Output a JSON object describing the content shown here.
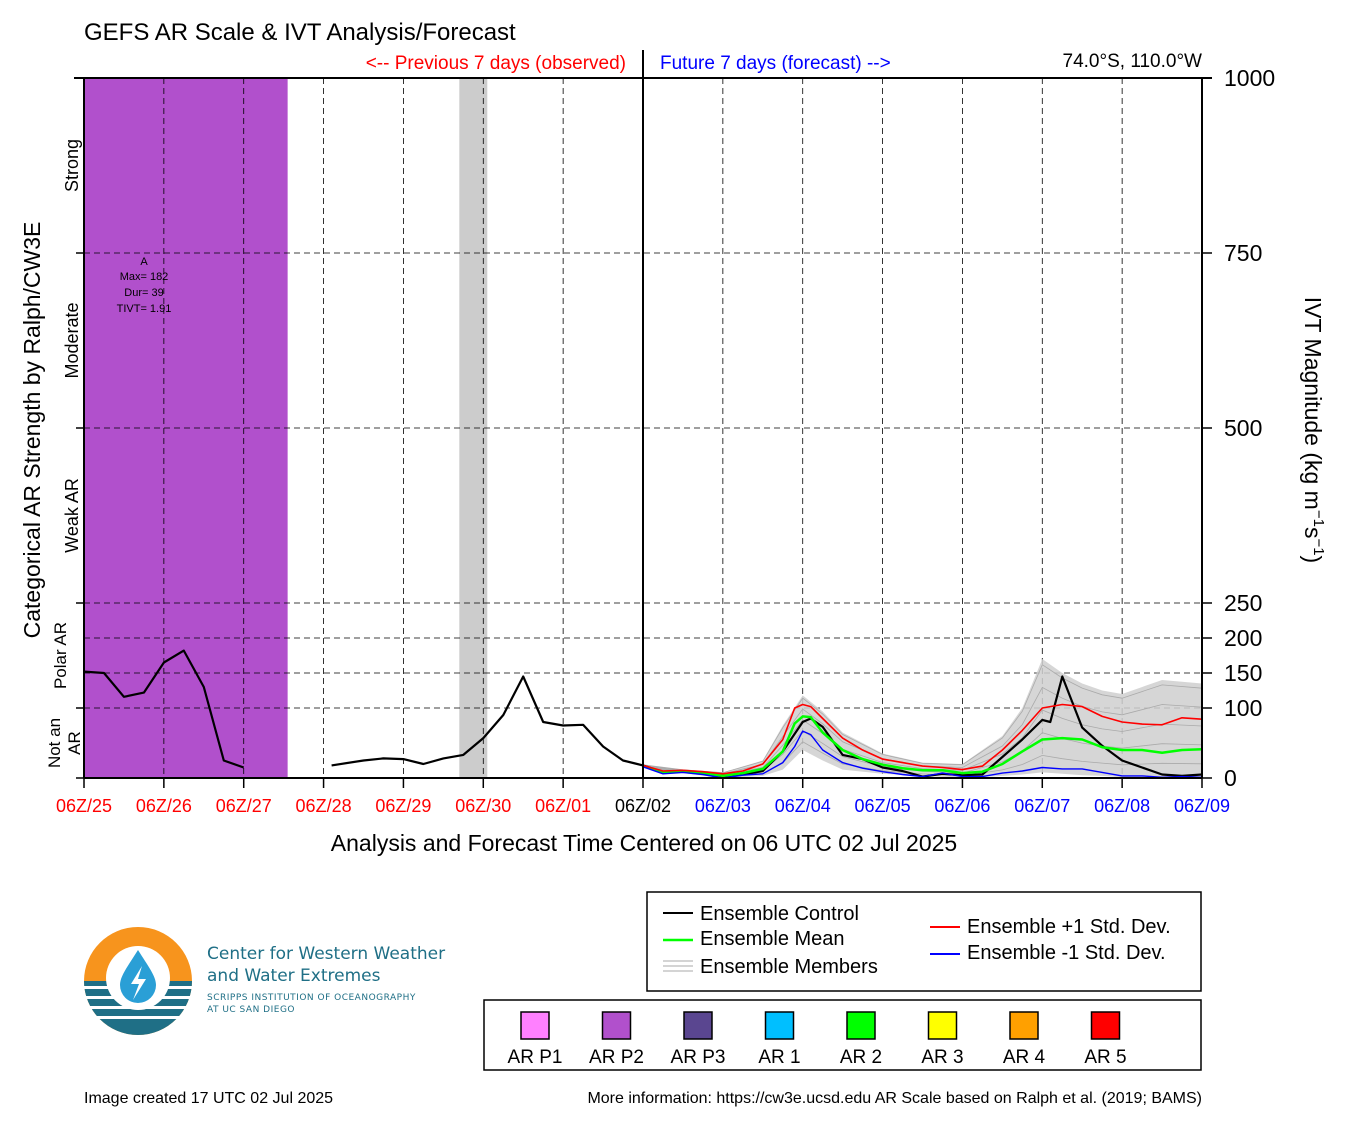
{
  "header": {
    "title": "GEFS AR Scale & IVT Analysis/Forecast",
    "previous_label": "<-- Previous 7 days (observed)",
    "future_label": "Future 7 days (forecast) -->",
    "location": "74.0°S, 110.0°W"
  },
  "colors": {
    "observed": "#ff0000",
    "forecast": "#0000ff",
    "control": "#000000",
    "mean": "#00ff00",
    "plus_std": "#ff0000",
    "minus_std": "#0000ff",
    "members": "#aaaaaa",
    "ar_p2_shade": "#b150cc",
    "gap_shade": "#cccccc"
  },
  "chart_data": {
    "type": "line",
    "title": "GEFS AR Scale & IVT Analysis/Forecast",
    "xlabel": "Analysis and Forecast Time Centered on 06 UTC 02 Jul 2025",
    "ylabel_left": "Categorical AR Strength by Ralph/CW3E",
    "ylabel_right": "IVT Magnitude (kg m⁻¹s⁻¹)",
    "x_unit": "days relative to 06Z/02",
    "xlim": [
      -7,
      7
    ],
    "ylim": [
      0,
      1000
    ],
    "y_scale": "piecewise",
    "y_ticks": [
      0,
      100,
      150,
      200,
      250,
      500,
      750,
      1000
    ],
    "x_ticks": [
      {
        "label": "06Z/25",
        "x": -7,
        "period": "observed"
      },
      {
        "label": "06Z/26",
        "x": -6,
        "period": "observed"
      },
      {
        "label": "06Z/27",
        "x": -5,
        "period": "observed"
      },
      {
        "label": "06Z/28",
        "x": -4,
        "period": "observed"
      },
      {
        "label": "06Z/29",
        "x": -3,
        "period": "observed"
      },
      {
        "label": "06Z/30",
        "x": -2,
        "period": "observed"
      },
      {
        "label": "06Z/01",
        "x": -1,
        "period": "observed"
      },
      {
        "label": "06Z/02",
        "x": 0,
        "period": "now"
      },
      {
        "label": "06Z/03",
        "x": 1,
        "period": "forecast"
      },
      {
        "label": "06Z/04",
        "x": 2,
        "period": "forecast"
      },
      {
        "label": "06Z/05",
        "x": 3,
        "period": "forecast"
      },
      {
        "label": "06Z/06",
        "x": 4,
        "period": "forecast"
      },
      {
        "label": "06Z/07",
        "x": 5,
        "period": "forecast"
      },
      {
        "label": "06Z/08",
        "x": 6,
        "period": "forecast"
      },
      {
        "label": "06Z/09",
        "x": 7,
        "period": "forecast"
      }
    ],
    "categories_left": [
      "Not an AR",
      "Polar AR",
      "Weak AR",
      "Moderate",
      "Strong"
    ],
    "category_bounds": [
      0,
      100,
      250,
      500,
      750,
      1000
    ],
    "ar_event": {
      "label": "A",
      "max": "Max= 182",
      "duration": "Dur= 39",
      "tivt": "TIVT= 1.91",
      "x_start": -7,
      "x_end": -4.45,
      "category": "AR P2"
    },
    "missing_data_span": [
      -2.3,
      -1.95
    ],
    "series": [
      {
        "name": "Ensemble Control",
        "role": "control",
        "x": [
          -7,
          -6.75,
          -6.5,
          -6.25,
          -6,
          -5.75,
          -5.5,
          -5.25,
          -5
        ],
        "y": [
          152,
          150,
          116,
          122,
          165,
          182,
          130,
          25,
          15
        ]
      },
      {
        "name": "Ensemble Control",
        "role": "control",
        "x": [
          -3.9,
          -3.5,
          -3.25,
          -3,
          -2.75,
          -2.5,
          -2.25,
          -2,
          -1.75,
          -1.5,
          -1.25,
          -1,
          -0.75,
          -0.5,
          -0.25,
          0,
          0.25,
          0.5,
          0.75,
          1,
          1.25,
          1.5,
          1.75,
          2,
          2.1,
          2.25,
          2.5,
          2.75,
          3,
          3.25,
          3.5,
          3.75,
          4,
          4.25,
          4.5,
          4.75,
          5,
          5.1,
          5.25,
          5.5,
          5.75,
          6,
          6.25,
          6.5,
          6.75,
          7
        ],
        "y": [
          18,
          25,
          28,
          27,
          20,
          28,
          33,
          57,
          90,
          145,
          80,
          75,
          76,
          45,
          25,
          18,
          8,
          10,
          8,
          2,
          5,
          10,
          38,
          80,
          85,
          73,
          33,
          27,
          15,
          10,
          2,
          6,
          4,
          5,
          30,
          55,
          83,
          80,
          145,
          72,
          46,
          25,
          15,
          5,
          3,
          5
        ]
      },
      {
        "name": "Ensemble Mean",
        "role": "mean",
        "x": [
          0,
          0.25,
          0.5,
          0.75,
          1,
          1.25,
          1.5,
          1.75,
          1.9,
          2,
          2.1,
          2.25,
          2.5,
          2.75,
          3,
          3.25,
          3.5,
          3.75,
          4,
          4.25,
          4.5,
          4.75,
          5,
          5.25,
          5.5,
          5.75,
          6,
          6.25,
          6.5,
          6.75,
          7
        ],
        "y": [
          17,
          8,
          10,
          7,
          3,
          7,
          13,
          38,
          78,
          88,
          87,
          65,
          40,
          27,
          19,
          14,
          11,
          11,
          7,
          9,
          20,
          38,
          55,
          57,
          55,
          44,
          40,
          40,
          36,
          40,
          41
        ]
      },
      {
        "name": "Ensemble +1 Std. Dev.",
        "role": "plus_std",
        "x": [
          0,
          0.25,
          0.5,
          0.75,
          1,
          1.25,
          1.5,
          1.75,
          1.9,
          2,
          2.1,
          2.25,
          2.5,
          2.75,
          3,
          3.25,
          3.5,
          3.75,
          4,
          4.25,
          4.5,
          4.75,
          5,
          5.25,
          5.5,
          5.75,
          6,
          6.25,
          6.5,
          6.75,
          7
        ],
        "y": [
          18,
          10,
          11,
          9,
          6,
          10,
          20,
          55,
          100,
          105,
          102,
          85,
          57,
          40,
          27,
          22,
          17,
          15,
          12,
          17,
          40,
          68,
          100,
          105,
          102,
          88,
          80,
          77,
          76,
          86,
          84
        ]
      },
      {
        "name": "Ensemble -1 Std. Dev.",
        "role": "minus_std",
        "x": [
          0,
          0.25,
          0.5,
          0.75,
          1,
          1.25,
          1.5,
          1.75,
          1.9,
          2,
          2.1,
          2.25,
          2.5,
          2.75,
          3,
          3.25,
          3.5,
          3.75,
          4,
          4.25,
          4.5,
          4.75,
          5,
          5.25,
          5.5,
          5.75,
          6,
          6.25,
          6.5,
          6.75,
          7
        ],
        "y": [
          16,
          6,
          8,
          5,
          0,
          4,
          6,
          22,
          45,
          67,
          62,
          40,
          22,
          14,
          9,
          5,
          2,
          7,
          2,
          2,
          7,
          10,
          15,
          13,
          13,
          8,
          3,
          3,
          1,
          2,
          1
        ]
      }
    ],
    "members_band": {
      "x": [
        0,
        0.5,
        1,
        1.5,
        1.75,
        2,
        2.25,
        2.5,
        3,
        3.5,
        4,
        4.5,
        4.75,
        5,
        5.25,
        5.5,
        5.75,
        6,
        6.5,
        7
      ],
      "low": [
        15,
        7,
        0,
        3,
        12,
        40,
        25,
        12,
        6,
        3,
        0,
        3,
        5,
        8,
        6,
        4,
        3,
        1,
        0,
        0
      ],
      "high": [
        19,
        12,
        8,
        25,
        75,
        118,
        95,
        65,
        35,
        22,
        20,
        60,
        100,
        170,
        150,
        135,
        125,
        120,
        140,
        135
      ]
    }
  },
  "legend": {
    "items": [
      {
        "label": "Ensemble Control",
        "color": "#000000"
      },
      {
        "label": "Ensemble Mean",
        "color": "#00ff00"
      },
      {
        "label": "Ensemble Members",
        "color": "#aaaaaa"
      },
      {
        "label": "Ensemble +1 Std. Dev.",
        "color": "#ff0000"
      },
      {
        "label": "Ensemble -1 Std. Dev.",
        "color": "#0000ff"
      }
    ],
    "ar_scale": [
      {
        "label": "AR P1",
        "color": "#ff80ff"
      },
      {
        "label": "AR P2",
        "color": "#b150cc"
      },
      {
        "label": "AR P3",
        "color": "#5a4690"
      },
      {
        "label": "AR 1",
        "color": "#00bfff"
      },
      {
        "label": "AR 2",
        "color": "#00ff00"
      },
      {
        "label": "AR 3",
        "color": "#ffff00"
      },
      {
        "label": "AR 4",
        "color": "#ffa000"
      },
      {
        "label": "AR 5",
        "color": "#ff0000"
      }
    ]
  },
  "logo": {
    "line1": "Center for Western Weather",
    "line2": "and Water Extremes",
    "sub1": "SCRIPPS INSTITUTION OF OCEANOGRAPHY",
    "sub2": "AT UC SAN DIEGO"
  },
  "footer": {
    "created": "Image created 17 UTC 02 Jul 2025",
    "info": "More information: https://cw3e.ucsd.edu AR Scale based on Ralph et al. (2019; BAMS)"
  }
}
